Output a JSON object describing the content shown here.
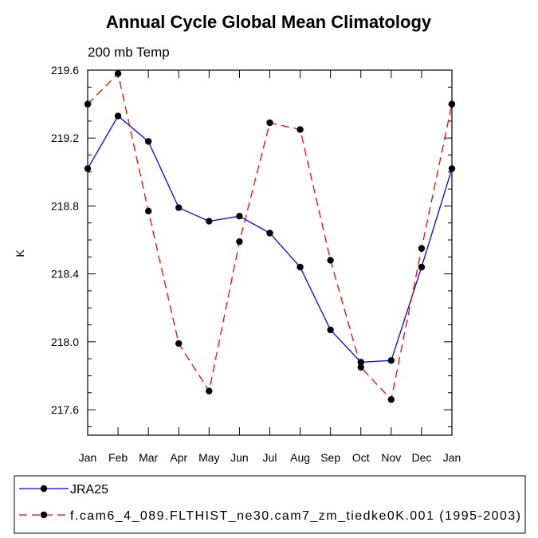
{
  "chart_data": {
    "type": "line",
    "title": "Annual Cycle Global Mean Climatology",
    "subtitle": "200 mb Temp",
    "xlabel": "",
    "ylabel": "K",
    "categories": [
      "Jan",
      "Feb",
      "Mar",
      "Apr",
      "May",
      "Jun",
      "Jul",
      "Aug",
      "Sep",
      "Oct",
      "Nov",
      "Dec",
      "Jan"
    ],
    "yticks": [
      "217.6",
      "218.0",
      "218.4",
      "218.8",
      "219.2",
      "219.6"
    ],
    "ylim": [
      217.45,
      219.6
    ],
    "series": [
      {
        "name": "JRA25",
        "color": "#0000ff",
        "dash": "solid",
        "values": [
          219.02,
          219.33,
          219.18,
          218.79,
          218.71,
          218.74,
          218.64,
          218.44,
          218.07,
          217.88,
          217.89,
          218.44,
          219.02
        ]
      },
      {
        "name": "f.cam6_4_089.FLTHIST_ne30.cam7_zm_tiedke0K.001 (1995-2003)",
        "color": "#ff0000",
        "dash": "dashed",
        "values": [
          219.4,
          219.58,
          218.77,
          217.99,
          217.71,
          218.59,
          219.29,
          219.25,
          218.48,
          217.85,
          217.66,
          218.55,
          219.4
        ]
      }
    ],
    "legend_position": "bottom"
  }
}
